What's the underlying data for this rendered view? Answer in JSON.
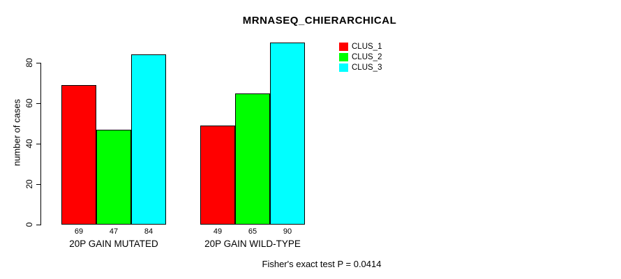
{
  "chart_data": {
    "type": "bar",
    "title": "MRNASEQ_CHIERARCHICAL",
    "xlabel": "",
    "ylabel": "number of cases",
    "categories": [
      "20P GAIN MUTATED",
      "20P GAIN WILD-TYPE"
    ],
    "series": [
      {
        "name": "CLUS_1",
        "color": "#ff0000",
        "values": [
          69,
          49
        ]
      },
      {
        "name": "CLUS_2",
        "color": "#00ff00",
        "values": [
          47,
          65
        ]
      },
      {
        "name": "CLUS_3",
        "color": "#00ffff",
        "values": [
          84,
          90
        ]
      }
    ],
    "bar_value_labels": [
      [
        69,
        47,
        84
      ],
      [
        49,
        65,
        90
      ]
    ],
    "yticks": [
      0,
      20,
      40,
      60,
      80
    ],
    "ylim": [
      0,
      93
    ],
    "grid": false,
    "legend_position": "top-right",
    "legend_entries": [
      "CLUS_1",
      "CLUS_2",
      "CLUS_3"
    ],
    "annotation": "Fisher's exact test P = 0.0414"
  }
}
